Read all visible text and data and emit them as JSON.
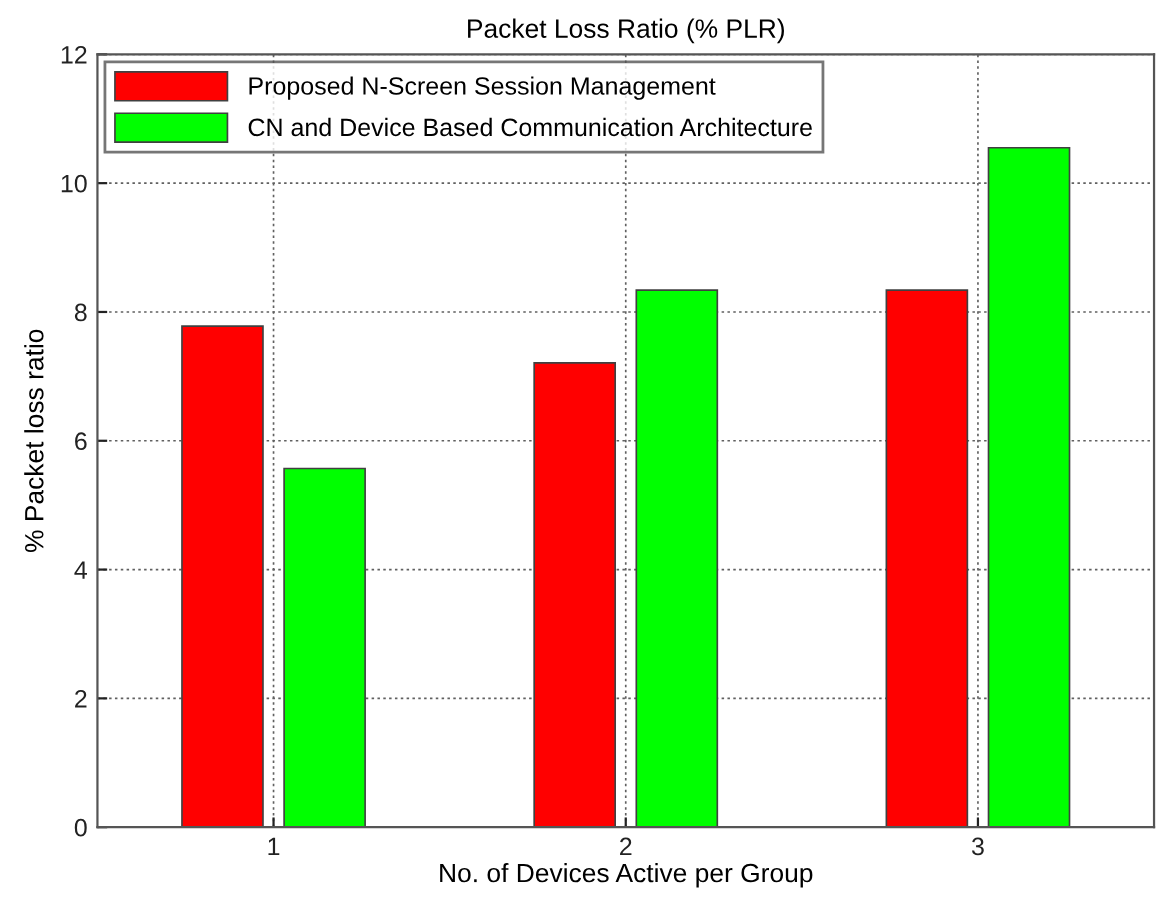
{
  "chart_data": {
    "type": "bar",
    "title": "Packet Loss Ratio (% PLR)",
    "xlabel": "No. of Devices Active per Group",
    "ylabel": "% Packet loss ratio",
    "categories": [
      "1",
      "2",
      "3"
    ],
    "series": [
      {
        "name": "Proposed N-Screen Session Management",
        "color": "#ff0000",
        "values": [
          7.78,
          7.21,
          8.34
        ]
      },
      {
        "name": "CN and Device Based Communication Architecture",
        "color": "#00ff00",
        "values": [
          5.57,
          8.34,
          10.55
        ]
      }
    ],
    "ylim": [
      0,
      12
    ],
    "yticks": [
      0,
      2,
      4,
      6,
      8,
      10,
      12
    ],
    "grid": true,
    "legend": "top left"
  }
}
